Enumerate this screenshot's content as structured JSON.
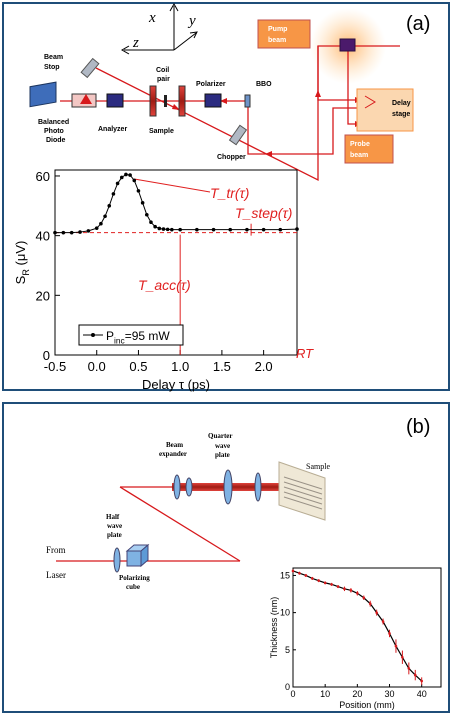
{
  "panel_a": {
    "label": "(a)",
    "axes": {
      "x": "x",
      "y": "y",
      "z": "z"
    },
    "labels": {
      "pump": [
        "Pump",
        "beam"
      ],
      "probe": [
        "Probe",
        "beam"
      ],
      "delay": [
        "Delay",
        "stage"
      ],
      "beam_stop": [
        "Beam",
        "Stop"
      ],
      "coil": [
        "Coil",
        "pair"
      ],
      "polarizer": "Polarizer",
      "bbo": "BBO",
      "bpd": [
        "Balanced",
        "Photo",
        "Diode"
      ],
      "analyzer": "Analyzer",
      "sample": "Sample",
      "chopper": "Chopper"
    },
    "annotations": {
      "t_tr": "T_tr(τ)",
      "t_step": "T_step(τ)",
      "t_acc": "T_acc(τ)",
      "rt": "RT"
    },
    "colors": {
      "beam": "#d7191c",
      "box": "#f79646",
      "annot": "#e02020"
    }
  },
  "panel_b": {
    "label": "(b)",
    "labels": {
      "beam_expander": [
        "Beam",
        "expander"
      ],
      "quarter": [
        "Quarter",
        "wave",
        "plate"
      ],
      "sample": "Sample",
      "half": [
        "Half",
        "wave",
        "plate"
      ],
      "from": "From",
      "laser": "Laser",
      "cube": [
        "Polarizing",
        "cube"
      ]
    }
  },
  "chart_data": [
    {
      "type": "line",
      "xlabel": "Delay τ (ps)",
      "ylabel": "S_R (μV)",
      "xlim": [
        -0.5,
        2.4
      ],
      "ylim": [
        0,
        62
      ],
      "xticks": [
        -0.5,
        0.0,
        0.5,
        1.0,
        1.5,
        2.0
      ],
      "yticks": [
        0,
        20,
        40,
        60
      ],
      "xtick_labels": [
        "-0.5",
        "0.0",
        "0.5",
        "1.0",
        "1.5",
        "2.0"
      ],
      "ytick_labels": [
        "0",
        "20",
        "40",
        "60"
      ],
      "baseline": 41,
      "legend": "P_inc=95 mW",
      "series": [
        {
          "name": "P_inc=95 mW",
          "x": [
            -0.5,
            -0.4,
            -0.3,
            -0.2,
            -0.1,
            0.0,
            0.05,
            0.1,
            0.15,
            0.2,
            0.25,
            0.3,
            0.35,
            0.4,
            0.45,
            0.5,
            0.55,
            0.6,
            0.65,
            0.7,
            0.75,
            0.8,
            0.85,
            0.9,
            1.0,
            1.2,
            1.4,
            1.6,
            1.8,
            2.0,
            2.2,
            2.4
          ],
          "y": [
            41,
            41,
            41,
            41.2,
            41.6,
            42.5,
            44,
            46.5,
            50,
            54,
            57.5,
            59.5,
            60.5,
            60.3,
            58.5,
            55,
            51,
            47,
            44.5,
            43,
            42.4,
            42.2,
            42.1,
            42,
            42,
            42,
            42,
            42,
            42,
            42,
            42,
            42.2
          ]
        }
      ]
    },
    {
      "type": "scatter",
      "xlabel": "Position (mm)",
      "ylabel": "Thickness (nm)",
      "xlim": [
        0,
        46
      ],
      "ylim": [
        0,
        16
      ],
      "xticks": [
        0,
        10,
        20,
        30,
        40
      ],
      "yticks": [
        0,
        5,
        10,
        15
      ],
      "xtick_labels": [
        "0",
        "10",
        "20",
        "30",
        "40"
      ],
      "ytick_labels": [
        "0",
        "5",
        "10",
        "15"
      ],
      "series": [
        {
          "x": [
            0,
            2,
            4,
            6,
            8,
            10,
            12,
            14,
            16,
            18,
            20,
            22,
            24,
            26,
            28,
            30,
            32,
            34,
            36,
            38,
            40
          ],
          "y": [
            15.6,
            15.3,
            15.0,
            14.6,
            14.3,
            14.0,
            13.8,
            13.5,
            13.2,
            13.0,
            12.6,
            12.0,
            11.2,
            10.0,
            8.8,
            7.2,
            5.5,
            4.0,
            2.5,
            1.6,
            0.8
          ],
          "err": [
            0.2,
            0.2,
            0.2,
            0.2,
            0.2,
            0.2,
            0.2,
            0.2,
            0.3,
            0.3,
            0.3,
            0.3,
            0.4,
            0.4,
            0.4,
            0.5,
            0.9,
            0.9,
            0.8,
            0.7,
            0.5
          ]
        }
      ]
    }
  ]
}
